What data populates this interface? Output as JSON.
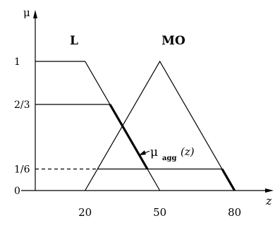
{
  "chart_data": {
    "type": "line",
    "xlabel": "z",
    "ylabel": "μ",
    "x_ticks": [
      {
        "value": 20,
        "label": "20"
      },
      {
        "value": 50,
        "label": "50"
      },
      {
        "value": 80,
        "label": "80"
      }
    ],
    "y_ticks": [
      {
        "value": 0,
        "label": "0"
      },
      {
        "value": 0.1667,
        "label": "1/6"
      },
      {
        "value": 0.6667,
        "label": "2/3"
      },
      {
        "value": 1,
        "label": "1"
      }
    ],
    "xlim": [
      0,
      90
    ],
    "ylim": [
      0,
      1.17
    ],
    "series": [
      {
        "name": "L",
        "points": [
          [
            0,
            1
          ],
          [
            20,
            1
          ],
          [
            50,
            0
          ]
        ]
      },
      {
        "name": "MO",
        "points": [
          [
            20,
            0
          ],
          [
            50,
            1
          ],
          [
            80,
            0
          ]
        ]
      }
    ],
    "clip_lines": [
      {
        "y": 0.6667,
        "x_from": 0,
        "x_to": 30,
        "style": "solid"
      },
      {
        "y": 0.1667,
        "x_from": 0,
        "x_to": 25,
        "style": "dashed"
      },
      {
        "y": 0.1667,
        "x_from": 25,
        "x_to": 75,
        "style": "solid"
      }
    ],
    "aggregate": {
      "label_main": "μ",
      "label_sub": "agg",
      "label_arg": "(z)",
      "points": [
        [
          30,
          0.6667
        ],
        [
          35,
          0.5
        ],
        [
          45,
          0.1667
        ],
        [
          75,
          0.1667
        ],
        [
          80,
          0
        ]
      ]
    },
    "grid": false,
    "legend": "none"
  }
}
